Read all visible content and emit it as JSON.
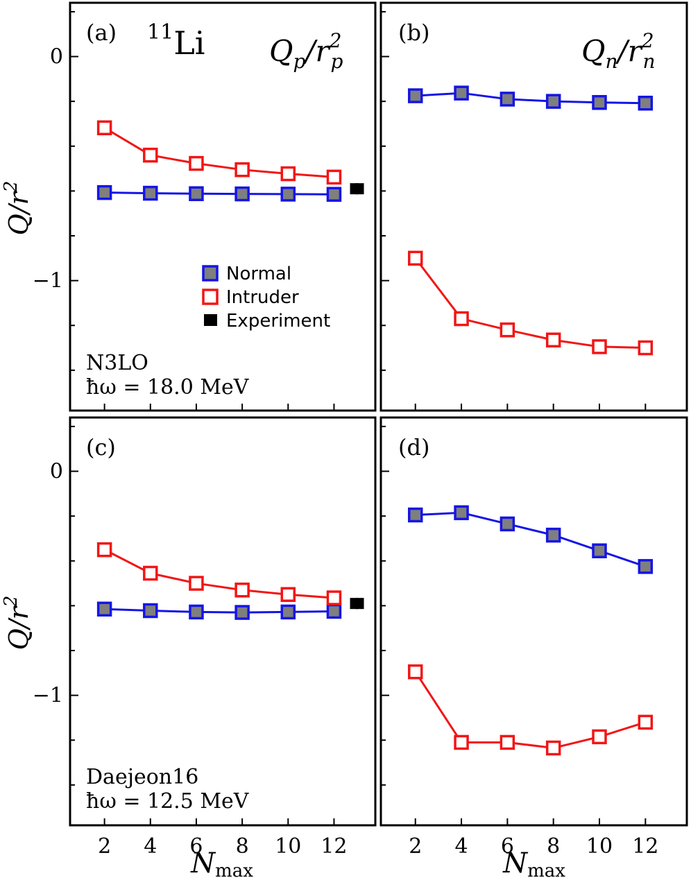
{
  "figure": {
    "nucleus_mass": "11",
    "nucleus_symbol": "Li",
    "legend": {
      "normal": "Normal",
      "intruder": "Intruder",
      "experiment": "Experiment"
    },
    "ylabel_main": "Q/r",
    "ylabel_sup": "2",
    "xlabel_main": "N",
    "xlabel_sub": "max",
    "colors": {
      "normal_edge": "#1515e6",
      "normal_fill": "#7f7f7f",
      "intruder_edge": "#f21515",
      "experiment": "#000000"
    }
  },
  "chart_data": [
    {
      "type": "line",
      "panel": "(a)",
      "title": "Qp/rp^2",
      "title_main": "Q",
      "title_sub": "p",
      "title_den": "r",
      "title_den_sub": "p",
      "title_sup": "2",
      "note_lines": [
        "N3LO",
        "ħω = 18.0 MeV"
      ],
      "x": [
        2,
        4,
        6,
        8,
        10,
        12
      ],
      "xlim": [
        0.5,
        13.8
      ],
      "ylim": [
        -1.58,
        0.24
      ],
      "yticks": [
        0,
        -1
      ],
      "ytick_labels": [
        "0",
        "−1"
      ],
      "series": [
        {
          "name": "Normal",
          "values": [
            -0.607,
            -0.61,
            -0.612,
            -0.613,
            -0.614,
            -0.615
          ]
        },
        {
          "name": "Intruder",
          "values": [
            -0.318,
            -0.44,
            -0.477,
            -0.505,
            -0.523,
            -0.538
          ]
        }
      ],
      "experiment": {
        "x": 13,
        "value": -0.59,
        "error": 0.025
      }
    },
    {
      "type": "line",
      "panel": "(b)",
      "title": "Qn/rn^2",
      "title_main": "Q",
      "title_sub": "n",
      "title_den": "r",
      "title_den_sub": "n",
      "title_sup": "2",
      "x": [
        2,
        4,
        6,
        8,
        10,
        12
      ],
      "xlim": [
        0.5,
        13.8
      ],
      "ylim": [
        -1.58,
        0.24
      ],
      "yticks": [
        0,
        -1
      ],
      "ytick_labels": [
        "",
        ""
      ],
      "series": [
        {
          "name": "Normal",
          "values": [
            -0.175,
            -0.163,
            -0.19,
            -0.2,
            -0.205,
            -0.208
          ]
        },
        {
          "name": "Intruder",
          "values": [
            -0.9,
            -1.17,
            -1.22,
            -1.265,
            -1.295,
            -1.3
          ]
        }
      ]
    },
    {
      "type": "line",
      "panel": "(c)",
      "note_lines": [
        "Daejeon16",
        "ħω = 12.5 MeV"
      ],
      "x": [
        2,
        4,
        6,
        8,
        10,
        12
      ],
      "xlim": [
        0.5,
        13.8
      ],
      "ylim": [
        -1.58,
        0.24
      ],
      "yticks": [
        0,
        -1
      ],
      "ytick_labels": [
        "0",
        "−1"
      ],
      "xtick_labels": [
        "2",
        "4",
        "6",
        "8",
        "10",
        "12"
      ],
      "series": [
        {
          "name": "Normal",
          "values": [
            -0.615,
            -0.622,
            -0.628,
            -0.63,
            -0.628,
            -0.625
          ]
        },
        {
          "name": "Intruder",
          "values": [
            -0.35,
            -0.455,
            -0.5,
            -0.53,
            -0.55,
            -0.565
          ]
        }
      ],
      "experiment": {
        "x": 13,
        "value": -0.59,
        "error": 0.025
      }
    },
    {
      "type": "line",
      "panel": "(d)",
      "x": [
        2,
        4,
        6,
        8,
        10,
        12
      ],
      "xlim": [
        0.5,
        13.8
      ],
      "ylim": [
        -1.58,
        0.24
      ],
      "yticks": [
        0,
        -1
      ],
      "ytick_labels": [
        "",
        ""
      ],
      "xtick_labels": [
        "2",
        "4",
        "6",
        "8",
        "10",
        "12"
      ],
      "series": [
        {
          "name": "Normal",
          "values": [
            -0.195,
            -0.185,
            -0.235,
            -0.285,
            -0.355,
            -0.425
          ]
        },
        {
          "name": "Intruder",
          "values": [
            -0.895,
            -1.21,
            -1.21,
            -1.235,
            -1.185,
            -1.12
          ]
        }
      ]
    }
  ]
}
